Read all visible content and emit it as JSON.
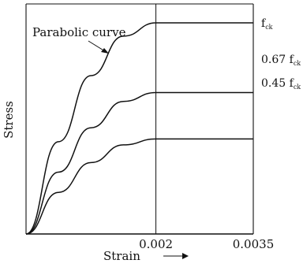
{
  "chart_data": {
    "type": "line",
    "xlabel": "Strain",
    "ylabel": "Stress",
    "xlim": [
      0,
      0.0035
    ],
    "ylim": [
      0,
      1.0
    ],
    "x_ticks": [
      "0.002",
      "0.0035"
    ],
    "annotation": "Parabolic curve",
    "series": [
      {
        "name_main": "f",
        "name_sub": "ck",
        "points": [
          [
            0,
            0
          ],
          [
            0.0005,
            0.437
          ],
          [
            0.001,
            0.75
          ],
          [
            0.0015,
            0.937
          ],
          [
            0.002,
            1.0
          ],
          [
            0.0035,
            1.0
          ]
        ]
      },
      {
        "name_main": "0.67 f",
        "name_sub": "ck",
        "points": [
          [
            0,
            0
          ],
          [
            0.0005,
            0.293
          ],
          [
            0.001,
            0.503
          ],
          [
            0.0015,
            0.628
          ],
          [
            0.002,
            0.67
          ],
          [
            0.0035,
            0.67
          ]
        ]
      },
      {
        "name_main": "0.45 f",
        "name_sub": "ck",
        "points": [
          [
            0,
            0
          ],
          [
            0.0005,
            0.197
          ],
          [
            0.001,
            0.338
          ],
          [
            0.0015,
            0.422
          ],
          [
            0.002,
            0.45
          ],
          [
            0.0035,
            0.45
          ]
        ]
      }
    ]
  }
}
